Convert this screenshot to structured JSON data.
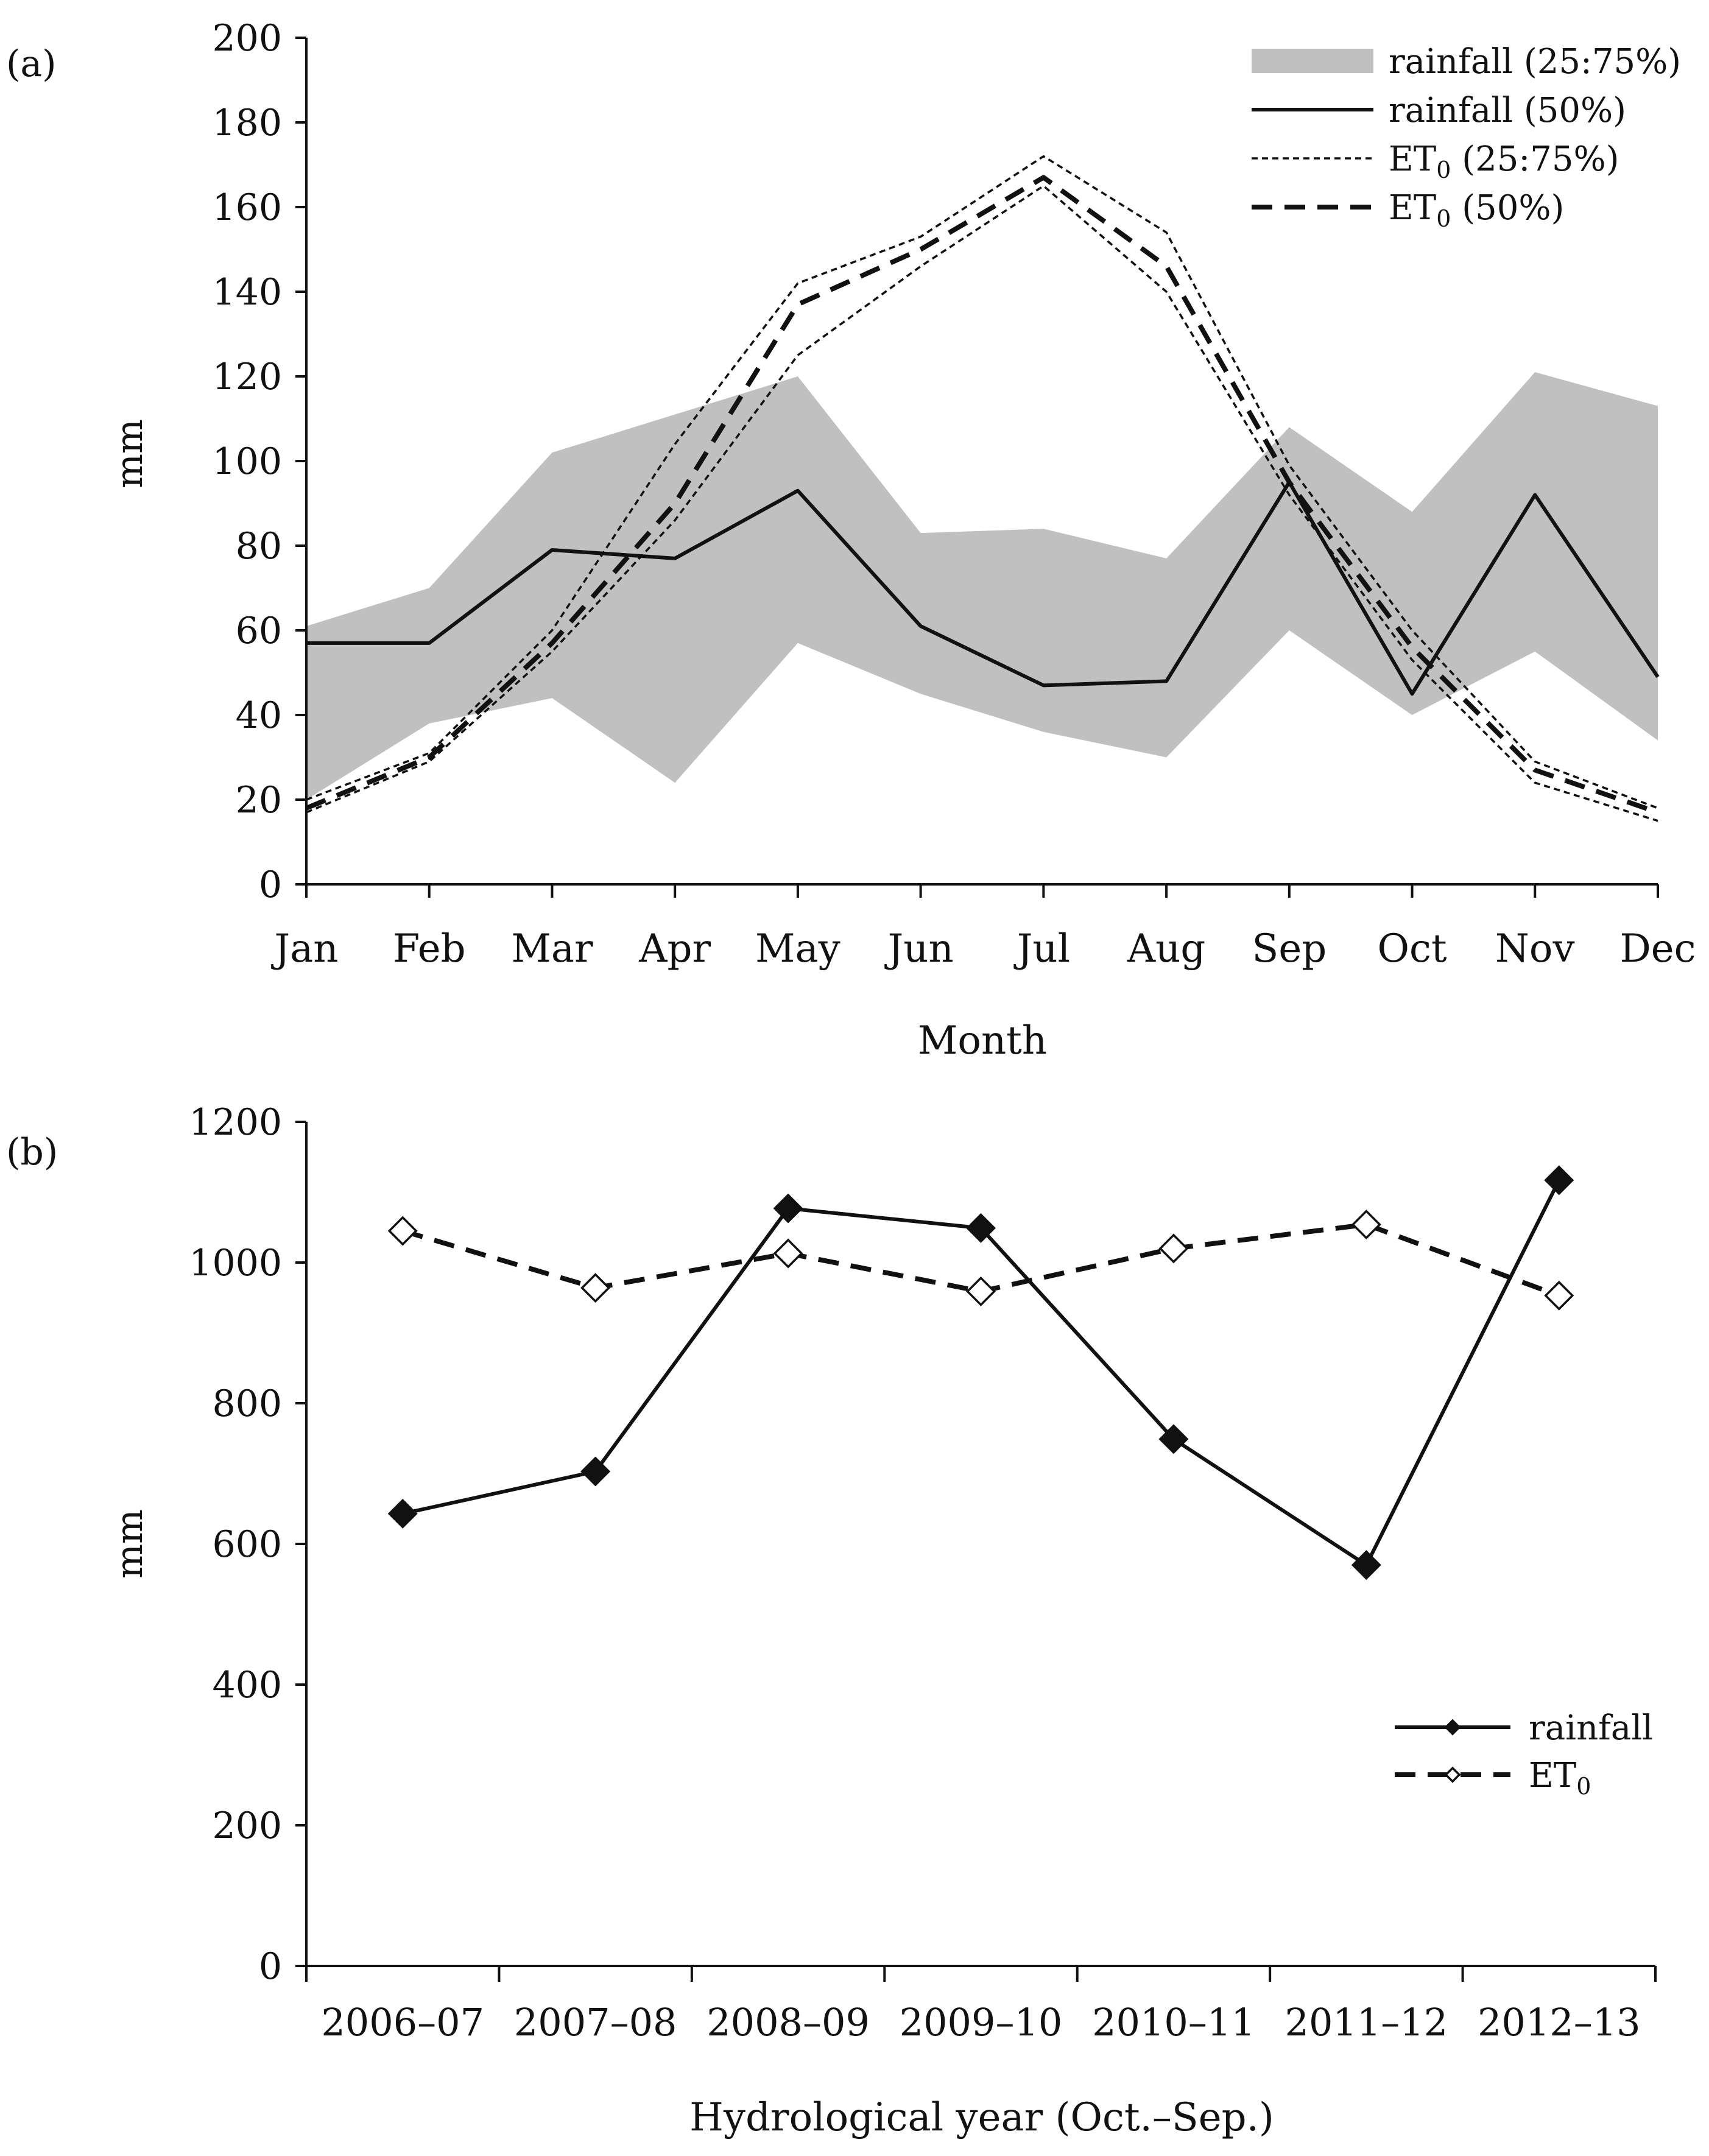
{
  "chart_data": [
    {
      "panel_label": "(a)",
      "type": "line",
      "xlabel": "Month",
      "ylabel": "mm",
      "ylim": [
        0,
        200
      ],
      "yticks": [
        0,
        20,
        40,
        60,
        80,
        100,
        120,
        140,
        160,
        180,
        200
      ],
      "categories": [
        "Jan",
        "Feb",
        "Mar",
        "Apr",
        "May",
        "Jun",
        "Jul",
        "Aug",
        "Sep",
        "Oct",
        "Nov",
        "Dec"
      ],
      "legend_position": "top-right",
      "grid": false,
      "series": [
        {
          "name": "rainfall (25:75%)",
          "style": "band",
          "color": "#c0c0c0",
          "lower": [
            20,
            38,
            44,
            24,
            57,
            45,
            36,
            30,
            60,
            40,
            55,
            34
          ],
          "upper": [
            61,
            70,
            102,
            111,
            120,
            83,
            84,
            77,
            108,
            88,
            121,
            113
          ]
        },
        {
          "name": "rainfall (50%)",
          "style": "solid",
          "color": "#111111",
          "values": [
            57,
            57,
            79,
            77,
            93,
            61,
            47,
            48,
            95,
            45,
            92,
            49
          ]
        },
        {
          "name": "ET0 (25:75%) lower",
          "style": "dotted",
          "color": "#111111",
          "values": [
            17,
            29,
            55,
            86,
            125,
            146,
            165,
            140,
            92,
            53,
            24,
            15
          ]
        },
        {
          "name": "ET0 (25:75%) upper",
          "style": "dotted",
          "color": "#111111",
          "values": [
            20,
            31,
            60,
            104,
            142,
            153,
            172,
            154,
            99,
            60,
            29,
            18
          ]
        },
        {
          "name": "ET0 (50%)",
          "style": "dashed",
          "color": "#111111",
          "values": [
            18,
            30,
            57,
            90,
            137,
            150,
            167,
            146,
            95,
            56,
            27,
            17
          ]
        }
      ],
      "legend": [
        {
          "prefix": "rainfall (25:75%)",
          "sub": "",
          "suffix": "",
          "style": "band"
        },
        {
          "prefix": "rainfall (50%)",
          "sub": "",
          "suffix": "",
          "style": "solid"
        },
        {
          "prefix": "ET",
          "sub": "0",
          "suffix": " (25:75%)",
          "style": "dotted"
        },
        {
          "prefix": "ET",
          "sub": "0",
          "suffix": " (50%)",
          "style": "dashed"
        }
      ]
    },
    {
      "panel_label": "(b)",
      "type": "line",
      "xlabel": "Hydrological year (Oct.–Sep.)",
      "ylabel": "mm",
      "ylim": [
        0,
        1200
      ],
      "yticks": [
        0,
        200,
        400,
        600,
        800,
        1000,
        1200
      ],
      "categories": [
        "2006–07",
        "2007–08",
        "2008–09",
        "2009–10",
        "2010–11",
        "2011–12",
        "2012–13"
      ],
      "legend_position": "right",
      "grid": false,
      "series": [
        {
          "name": "rainfall",
          "style": "solid",
          "marker": "filled-diamond",
          "color": "#111111",
          "values": [
            643,
            703,
            1077,
            1049,
            749,
            570,
            1117
          ]
        },
        {
          "name": "ET0",
          "style": "dashed",
          "marker": "open-diamond",
          "color": "#111111",
          "values": [
            1045,
            964,
            1013,
            959,
            1020,
            1054,
            953
          ]
        }
      ],
      "legend": [
        {
          "prefix": "rainfall",
          "sub": "",
          "suffix": "",
          "style": "solid"
        },
        {
          "prefix": "ET",
          "sub": "0",
          "suffix": "",
          "style": "dashed"
        }
      ]
    }
  ]
}
